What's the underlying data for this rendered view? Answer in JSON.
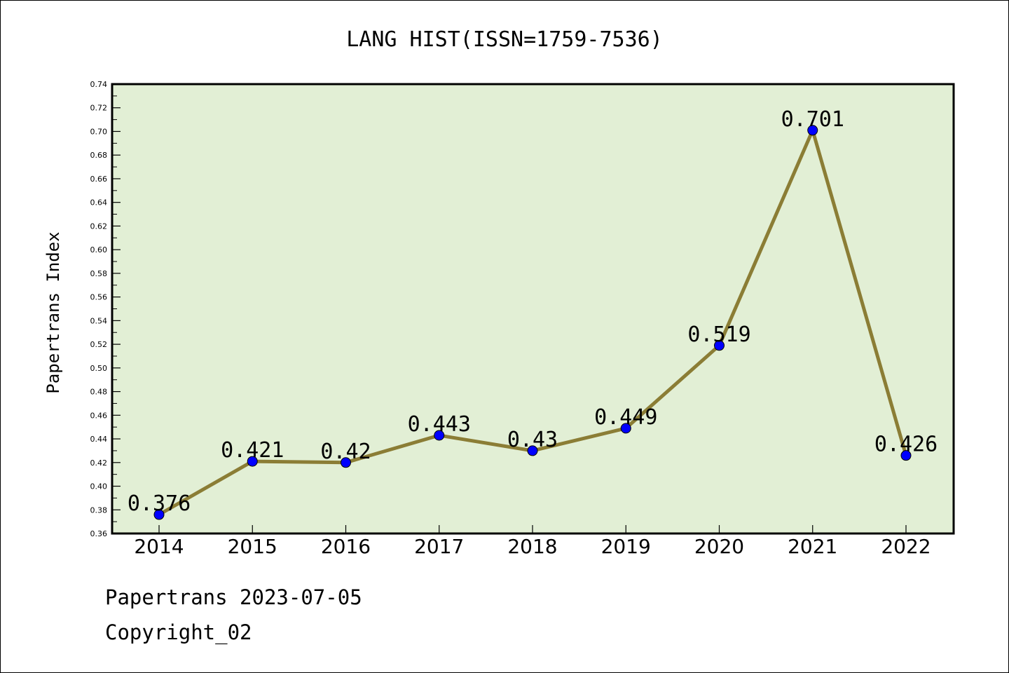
{
  "chart_data": {
    "type": "line",
    "title": "LANG HIST(ISSN=1759-7536)",
    "xlabel": "",
    "ylabel": "Papertrans Index",
    "categories": [
      "2014",
      "2015",
      "2016",
      "2017",
      "2018",
      "2019",
      "2020",
      "2021",
      "2022"
    ],
    "values": [
      0.376,
      0.421,
      0.42,
      0.443,
      0.43,
      0.449,
      0.519,
      0.701,
      0.426
    ],
    "data_labels": [
      "0.376",
      "0.421",
      "0.42",
      "0.443",
      "0.43",
      "0.449",
      "0.519",
      "0.701",
      "0.426"
    ],
    "ylim": [
      0.36,
      0.74
    ],
    "yticks": [
      "0.36",
      "0.38",
      "0.40",
      "0.42",
      "0.44",
      "0.46",
      "0.48",
      "0.50",
      "0.52",
      "0.54",
      "0.56",
      "0.58",
      "0.60",
      "0.62",
      "0.64",
      "0.66",
      "0.68",
      "0.70",
      "0.72",
      "0.74"
    ],
    "grid": false,
    "legend": "none",
    "colors": {
      "plot_background": "#e2efd5",
      "line": "#8b7d35",
      "marker": "#0000ff"
    }
  },
  "footer": {
    "line1": "Papertrans 2023-07-05",
    "line2": "Copyright_02"
  }
}
